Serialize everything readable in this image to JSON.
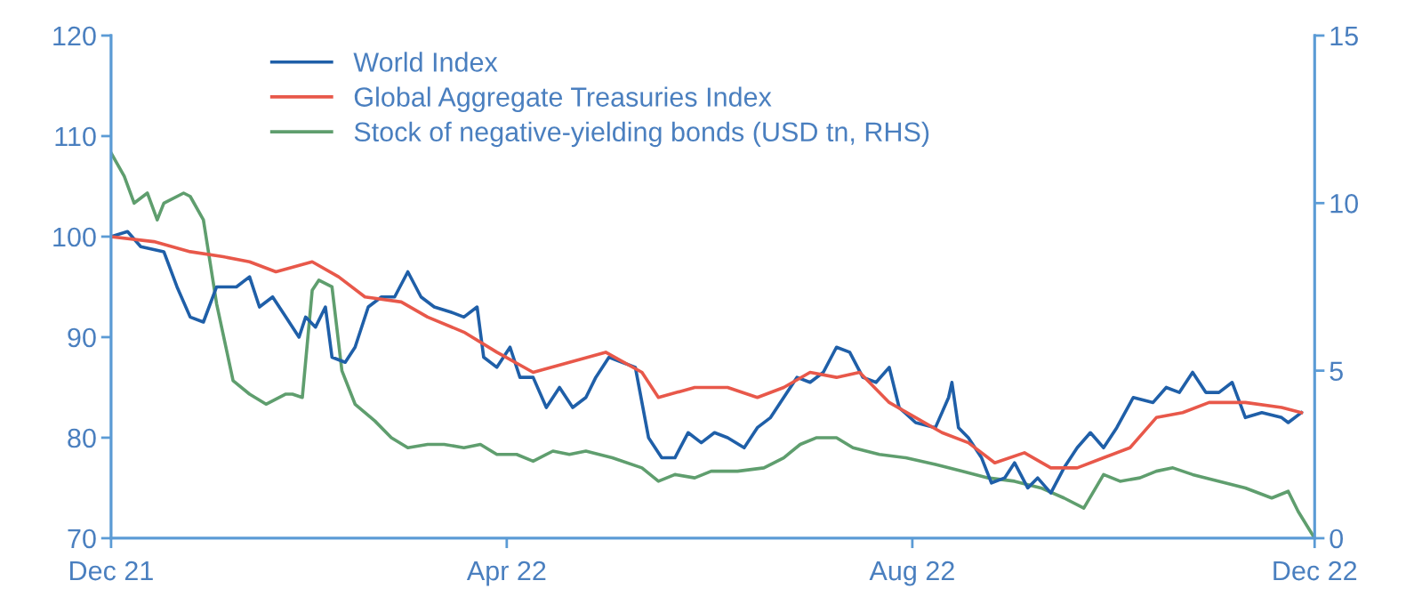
{
  "chart_data": {
    "type": "line",
    "x": [
      "2021-12-31",
      "2022-01-05",
      "2022-01-09",
      "2022-01-16",
      "2022-01-20",
      "2022-01-24",
      "2022-01-28",
      "2022-02-01",
      "2022-02-07",
      "2022-02-11",
      "2022-02-14",
      "2022-02-18",
      "2022-02-22",
      "2022-02-26",
      "2022-02-28",
      "2022-03-03",
      "2022-03-06",
      "2022-03-08",
      "2022-03-12",
      "2022-03-15",
      "2022-03-19",
      "2022-03-23",
      "2022-03-27",
      "2022-03-31",
      "2022-04-04",
      "2022-04-08",
      "2022-04-13",
      "2022-04-17",
      "2022-04-21",
      "2022-04-23",
      "2022-04-27",
      "2022-05-01",
      "2022-05-04",
      "2022-05-08",
      "2022-05-12",
      "2022-05-16",
      "2022-05-20",
      "2022-05-24",
      "2022-05-27",
      "2022-05-31",
      "2022-06-04",
      "2022-06-08",
      "2022-06-12",
      "2022-06-16",
      "2022-06-20",
      "2022-06-24",
      "2022-06-28",
      "2022-07-02",
      "2022-07-06",
      "2022-07-11",
      "2022-07-15",
      "2022-07-19",
      "2022-07-23",
      "2022-07-27",
      "2022-07-31",
      "2022-08-04",
      "2022-08-08",
      "2022-08-12",
      "2022-08-16",
      "2022-08-20",
      "2022-08-24",
      "2022-08-27",
      "2022-09-01",
      "2022-09-07",
      "2022-09-11",
      "2022-09-12",
      "2022-09-14",
      "2022-09-17",
      "2022-09-21",
      "2022-09-24",
      "2022-09-28",
      "2022-10-01",
      "2022-10-05",
      "2022-10-08",
      "2022-10-12",
      "2022-10-16",
      "2022-10-20",
      "2022-10-24",
      "2022-10-28",
      "2022-11-01",
      "2022-11-06",
      "2022-11-12",
      "2022-11-16",
      "2022-11-20",
      "2022-11-24",
      "2022-11-28",
      "2022-12-02",
      "2022-12-06",
      "2022-12-10",
      "2022-12-15",
      "2022-12-21",
      "2022-12-23",
      "2022-12-27"
    ],
    "series": [
      {
        "name": "World Index",
        "color": "#1f5fa8",
        "values": [
          100,
          100.5,
          99,
          98.5,
          95,
          92,
          91.5,
          95,
          95,
          96,
          93,
          94,
          92,
          90,
          92,
          91,
          93,
          88,
          87.5,
          89,
          93,
          94,
          94,
          96.5,
          94,
          93,
          92.5,
          92,
          93,
          88,
          87,
          89,
          86,
          86,
          83,
          85,
          83,
          84,
          86,
          88,
          87.5,
          87,
          80,
          78,
          78,
          80.5,
          79.5,
          80.5,
          80,
          79,
          81,
          82,
          84,
          86,
          85.5,
          86.5,
          89,
          88.5,
          86,
          85.5,
          87,
          83,
          81.5,
          81,
          84,
          85.5,
          81,
          80,
          78,
          75.5,
          76,
          77.5,
          75,
          76,
          74.5,
          77,
          79,
          80.5,
          79,
          81,
          84,
          83.5,
          85,
          84.5,
          86.5,
          84.5,
          84.5,
          85.5,
          82,
          82.5,
          82,
          81.5,
          82.5
        ]
      },
      {
        "name": "Global Aggregate Treasuries Index",
        "color": "#e8584a",
        "x": [
          "2021-12-31",
          "2022-01-13",
          "2022-01-24",
          "2022-02-03",
          "2022-02-11",
          "2022-02-19",
          "2022-03-02",
          "2022-03-10",
          "2022-03-18",
          "2022-03-29",
          "2022-04-06",
          "2022-04-17",
          "2022-04-27",
          "2022-05-08",
          "2022-05-19",
          "2022-05-30",
          "2022-06-10",
          "2022-06-15",
          "2022-06-26",
          "2022-07-06",
          "2022-07-15",
          "2022-07-23",
          "2022-07-31",
          "2022-08-08",
          "2022-08-15",
          "2022-08-24",
          "2022-09-01",
          "2022-09-09",
          "2022-09-17",
          "2022-09-25",
          "2022-10-04",
          "2022-10-12",
          "2022-10-20",
          "2022-10-28",
          "2022-11-05",
          "2022-11-13",
          "2022-11-21",
          "2022-11-29",
          "2022-12-10",
          "2022-12-21",
          "2022-12-27"
        ],
        "values": [
          100,
          99.5,
          98.5,
          98,
          97.5,
          96.5,
          97.5,
          96,
          94,
          93.5,
          92,
          90.5,
          88.5,
          86.5,
          87.5,
          88.5,
          86.5,
          84,
          85,
          85,
          84,
          85,
          86.5,
          86,
          86.5,
          83.5,
          82,
          80.5,
          79.5,
          77.5,
          78.5,
          77,
          77,
          78,
          79,
          82,
          82.5,
          83.5,
          83.5,
          83,
          82.5
        ]
      },
      {
        "name": "Stock of negative-yielding bonds (USD tn, RHS)",
        "color": "#5f9e6e",
        "axis": "y2",
        "x": [
          "2021-12-31",
          "2022-01-04",
          "2022-01-07",
          "2022-01-11",
          "2022-01-14",
          "2022-01-16",
          "2022-01-22",
          "2022-01-24",
          "2022-01-28",
          "2022-02-01",
          "2022-02-06",
          "2022-02-11",
          "2022-02-16",
          "2022-02-22",
          "2022-02-24",
          "2022-02-27",
          "2022-03-02",
          "2022-03-04",
          "2022-03-08",
          "2022-03-11",
          "2022-03-15",
          "2022-03-21",
          "2022-03-26",
          "2022-03-31",
          "2022-04-06",
          "2022-04-11",
          "2022-04-17",
          "2022-04-22",
          "2022-04-27",
          "2022-05-03",
          "2022-05-08",
          "2022-05-14",
          "2022-05-19",
          "2022-05-24",
          "2022-06-01",
          "2022-06-10",
          "2022-06-15",
          "2022-06-20",
          "2022-06-26",
          "2022-07-01",
          "2022-07-09",
          "2022-07-17",
          "2022-07-23",
          "2022-07-28",
          "2022-08-02",
          "2022-08-08",
          "2022-08-13",
          "2022-08-21",
          "2022-08-29",
          "2022-09-07",
          "2022-09-15",
          "2022-09-23",
          "2022-10-01",
          "2022-10-09",
          "2022-10-16",
          "2022-10-22",
          "2022-10-28",
          "2022-11-02",
          "2022-11-08",
          "2022-11-13",
          "2022-11-18",
          "2022-11-24",
          "2022-12-02",
          "2022-12-10",
          "2022-12-18",
          "2022-12-23",
          "2022-12-26",
          "2022-12-31"
        ],
        "values": [
          11.5,
          10.8,
          10,
          10.3,
          9.5,
          10,
          10.3,
          10.2,
          9.5,
          7,
          4.7,
          4.3,
          4,
          4.3,
          4.3,
          4.2,
          7.4,
          7.7,
          7.5,
          5,
          4,
          3.5,
          3.0,
          2.7,
          2.8,
          2.8,
          2.7,
          2.8,
          2.5,
          2.5,
          2.3,
          2.6,
          2.5,
          2.6,
          2.4,
          2.1,
          1.7,
          1.9,
          1.8,
          2.0,
          2.0,
          2.1,
          2.4,
          2.8,
          3.0,
          3.0,
          2.7,
          2.5,
          2.4,
          2.2,
          2.0,
          1.8,
          1.7,
          1.5,
          1.2,
          0.9,
          1.9,
          1.7,
          1.8,
          2.0,
          2.1,
          1.9,
          1.7,
          1.5,
          1.2,
          1.4,
          0.8,
          0
        ]
      }
    ],
    "xlim": [
      "2021-12-31",
      "2022-12-31"
    ],
    "xticks": [
      {
        "value": "2021-12-31",
        "label": "Dec 21"
      },
      {
        "value": "2022-04-30",
        "label": "Apr 22"
      },
      {
        "value": "2022-08-31",
        "label": "Aug 22"
      },
      {
        "value": "2022-12-31",
        "label": "Dec 22"
      }
    ],
    "ylim": [
      70,
      120
    ],
    "yticks": [
      70,
      80,
      90,
      100,
      110,
      120
    ],
    "y2lim": [
      0,
      15
    ],
    "y2ticks": [
      0,
      5,
      10,
      15
    ],
    "grid": false,
    "legend": "top left"
  }
}
